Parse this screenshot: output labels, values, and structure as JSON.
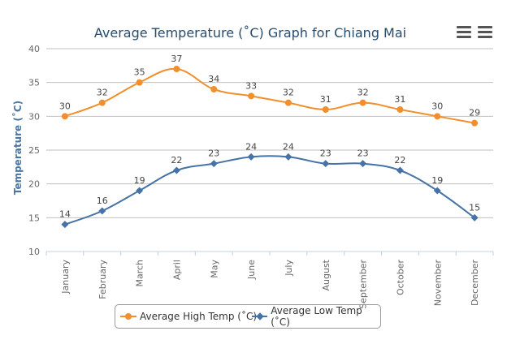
{
  "chart_data": {
    "type": "line",
    "title": "Average Temperature (˚C) Graph for Chiang Mai",
    "ylabel": "Temperature (˚C)",
    "xlabel": "",
    "categories": [
      "January",
      "February",
      "March",
      "April",
      "May",
      "June",
      "July",
      "August",
      "September",
      "October",
      "November",
      "December"
    ],
    "ylim": [
      10,
      40
    ],
    "yticks": [
      10,
      15,
      20,
      25,
      30,
      35,
      40
    ],
    "grid": true,
    "legend_position": "bottom-center",
    "series": [
      {
        "name": "Average High Temp (˚C)",
        "color": "#f28f2c",
        "marker": "circle",
        "values": [
          30,
          32,
          35,
          37,
          34,
          33,
          32,
          31,
          32,
          31,
          30,
          29
        ]
      },
      {
        "name": "Average Low Temp (˚C)",
        "color": "#4572a7",
        "marker": "diamond",
        "values": [
          14,
          16,
          19,
          22,
          23,
          24,
          24,
          23,
          23,
          22,
          19,
          15
        ]
      }
    ]
  },
  "toolbar": {
    "icons": [
      "menu-icon",
      "menu-icon"
    ]
  }
}
